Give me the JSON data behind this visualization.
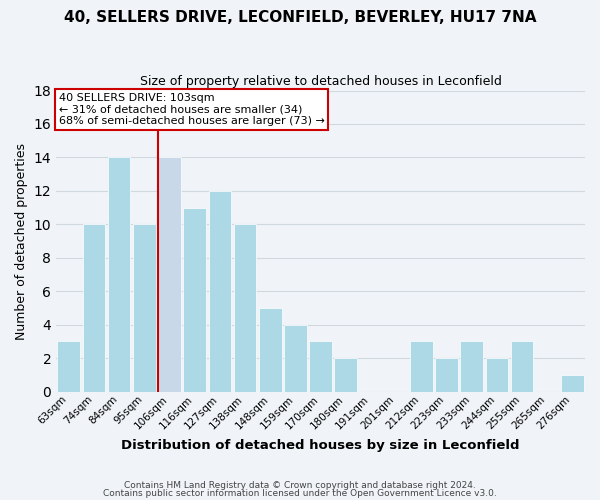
{
  "title": "40, SELLERS DRIVE, LECONFIELD, BEVERLEY, HU17 7NA",
  "subtitle": "Size of property relative to detached houses in Leconfield",
  "xlabel": "Distribution of detached houses by size in Leconfield",
  "ylabel": "Number of detached properties",
  "bar_labels": [
    "63sqm",
    "74sqm",
    "84sqm",
    "95sqm",
    "106sqm",
    "116sqm",
    "127sqm",
    "138sqm",
    "148sqm",
    "159sqm",
    "170sqm",
    "180sqm",
    "191sqm",
    "201sqm",
    "212sqm",
    "223sqm",
    "233sqm",
    "244sqm",
    "255sqm",
    "265sqm",
    "276sqm"
  ],
  "bar_values": [
    3,
    10,
    14,
    10,
    14,
    11,
    12,
    10,
    5,
    4,
    3,
    2,
    0,
    0,
    3,
    2,
    3,
    2,
    3,
    0,
    1
  ],
  "highlight_index": 4,
  "highlight_color": "#c8d8e8",
  "normal_color": "#add8e6",
  "highlight_line_color": "#cc0000",
  "annotation_line1": "40 SELLERS DRIVE: 103sqm",
  "annotation_line2": "← 31% of detached houses are smaller (34)",
  "annotation_line3": "68% of semi-detached houses are larger (73) →",
  "annotation_box_color": "#ffffff",
  "annotation_box_edge": "#cc0000",
  "ylim": [
    0,
    18
  ],
  "yticks": [
    0,
    2,
    4,
    6,
    8,
    10,
    12,
    14,
    16,
    18
  ],
  "footer1": "Contains HM Land Registry data © Crown copyright and database right 2024.",
  "footer2": "Contains public sector information licensed under the Open Government Licence v3.0.",
  "background_color": "#f0f4f8",
  "grid_color": "#d0d8e0"
}
